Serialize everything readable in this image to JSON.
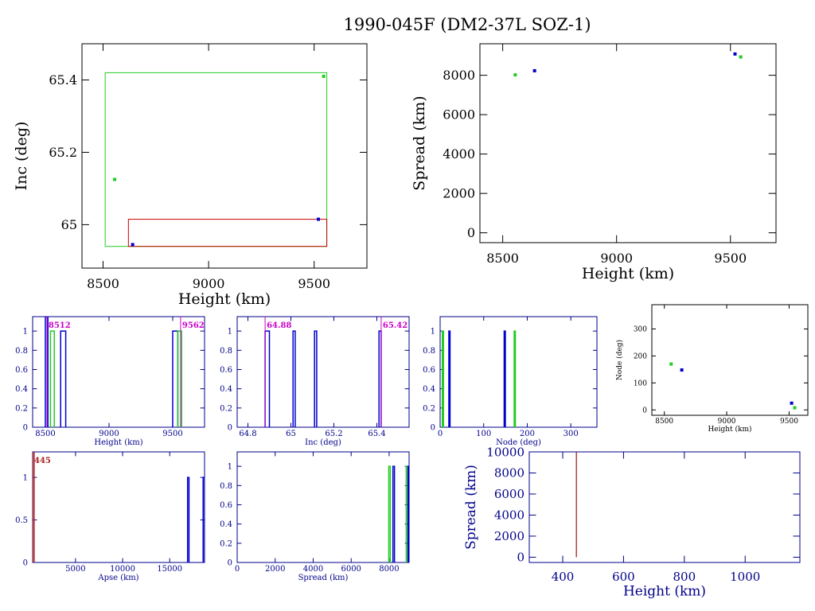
{
  "figure": {
    "title": "1990-045F (DM2-37L SOZ-1)"
  },
  "colors": {
    "axis": "#000000",
    "blue_axis": "#00008b",
    "blue": "#0000cc",
    "green": "#22cc22",
    "red": "#cc0000",
    "darkred": "#aa2222",
    "magenta": "#cc00cc"
  },
  "chart_data": [
    {
      "id": "inc-vs-height",
      "type": "scatter",
      "xlabel": "Height (km)",
      "ylabel": "Inc (deg)",
      "xlim": [
        8400,
        9750
      ],
      "ylim": [
        64.88,
        65.5
      ],
      "xticks": [
        8500,
        9000,
        9500
      ],
      "yticks": [
        65,
        65.2,
        65.4
      ],
      "grid": false,
      "rects": [
        {
          "color": "green",
          "x": [
            8510,
            9560
          ],
          "y": [
            64.94,
            65.42
          ]
        },
        {
          "color": "red",
          "x": [
            8620,
            9560
          ],
          "y": [
            64.94,
            65.015
          ]
        }
      ],
      "points": [
        {
          "color": "green",
          "x": 8555,
          "y": 65.125
        },
        {
          "color": "green",
          "x": 9545,
          "y": 65.41
        },
        {
          "color": "blue",
          "x": 9520,
          "y": 65.015
        },
        {
          "color": "blue",
          "x": 8640,
          "y": 64.945
        }
      ]
    },
    {
      "id": "spread-vs-height",
      "type": "scatter",
      "xlabel": "Height (km)",
      "ylabel": "Spread (km)",
      "xlim": [
        8400,
        9700
      ],
      "ylim": [
        -500,
        9600
      ],
      "xticks": [
        8500,
        9000,
        9500
      ],
      "yticks": [
        0,
        2000,
        4000,
        6000,
        8000
      ],
      "grid": false,
      "points": [
        {
          "color": "green",
          "x": 8555,
          "y": 8020
        },
        {
          "color": "blue",
          "x": 8640,
          "y": 8230
        },
        {
          "color": "blue",
          "x": 9520,
          "y": 9080
        },
        {
          "color": "green",
          "x": 9545,
          "y": 8930
        }
      ]
    },
    {
      "id": "height-histogram",
      "type": "bar",
      "xlabel": "Height (km)",
      "ylabel": "",
      "xlim": [
        8400,
        9750
      ],
      "ylim": [
        0,
        1.15
      ],
      "xticks": [
        8500,
        9000,
        9500
      ],
      "yticks": [
        0,
        0.2,
        0.4,
        0.6,
        0.8,
        1
      ],
      "ytick_labels": [
        "0",
        "0.2",
        "0.4",
        "0.6",
        "0.8",
        "1"
      ],
      "annotations": [
        {
          "text": "8512",
          "x": 8512,
          "color": "magenta"
        },
        {
          "text": "9562",
          "x": 9562,
          "color": "magenta"
        }
      ],
      "bars": [
        {
          "color": "blue",
          "x0": 8500,
          "x1": 8520,
          "y": 1.15
        },
        {
          "color": "green",
          "x0": 8540,
          "x1": 8570,
          "y": 1
        },
        {
          "color": "blue",
          "x0": 8620,
          "x1": 8660,
          "y": 1
        },
        {
          "color": "blue",
          "x0": 9500,
          "x1": 9540,
          "y": 1
        },
        {
          "color": "green",
          "x0": 9540,
          "x1": 9570,
          "y": 1
        }
      ]
    },
    {
      "id": "inc-histogram",
      "type": "bar",
      "xlabel": "Inc (deg)",
      "ylabel": "",
      "xlim": [
        64.75,
        65.55
      ],
      "ylim": [
        0,
        1.15
      ],
      "xticks": [
        64.8,
        65,
        65.2,
        65.4
      ],
      "xtick_labels": [
        "64.8",
        "65",
        "65.2",
        "65.4"
      ],
      "yticks": [
        0,
        0.2,
        0.4,
        0.6,
        0.8,
        1
      ],
      "ytick_labels": [
        "0",
        "0.2",
        "0.4",
        "0.6",
        "0.8",
        "1"
      ],
      "annotations": [
        {
          "text": "64.88",
          "x": 64.88,
          "color": "magenta"
        },
        {
          "text": "65.42",
          "x": 65.42,
          "color": "magenta"
        }
      ],
      "bars": [
        {
          "color": "blue",
          "x0": 64.88,
          "x1": 64.9,
          "y": 1
        },
        {
          "color": "blue",
          "x0": 65.01,
          "x1": 65.02,
          "y": 1
        },
        {
          "color": "blue",
          "x0": 65.11,
          "x1": 65.12,
          "y": 1
        },
        {
          "color": "blue",
          "x0": 65.41,
          "x1": 65.42,
          "y": 1
        }
      ]
    },
    {
      "id": "node-histogram",
      "type": "bar",
      "xlabel": "Node (deg)",
      "ylabel": "",
      "xlim": [
        0,
        360
      ],
      "ylim": [
        0,
        1.15
      ],
      "xticks": [
        0,
        100,
        200,
        300
      ],
      "yticks": [
        0,
        0.2,
        0.4,
        0.6,
        0.8,
        1
      ],
      "ytick_labels": [
        "0",
        "0.2",
        "0.4",
        "0.6",
        "0.8",
        "1"
      ],
      "bars": [
        {
          "color": "green",
          "x0": 5,
          "x1": 7,
          "y": 1
        },
        {
          "color": "blue",
          "x0": 20,
          "x1": 22,
          "y": 1
        },
        {
          "color": "blue",
          "x0": 147,
          "x1": 149,
          "y": 1
        },
        {
          "color": "green",
          "x0": 170,
          "x1": 172,
          "y": 1
        }
      ]
    },
    {
      "id": "node-vs-height",
      "type": "scatter",
      "xlabel": "Height (km)",
      "ylabel": "Node (deg)",
      "xlim": [
        8400,
        9650
      ],
      "ylim": [
        -20,
        390
      ],
      "xticks": [
        8500,
        9000,
        9500
      ],
      "yticks": [
        0,
        100,
        200,
        300
      ],
      "grid": false,
      "points": [
        {
          "color": "green",
          "x": 8555,
          "y": 170
        },
        {
          "color": "blue",
          "x": 8640,
          "y": 148
        },
        {
          "color": "blue",
          "x": 9520,
          "y": 25
        },
        {
          "color": "green",
          "x": 9545,
          "y": 8
        }
      ]
    },
    {
      "id": "apse-histogram",
      "type": "bar",
      "xlabel": "Apse (km)",
      "ylabel": "",
      "xlim": [
        445,
        18700
      ],
      "ylim": [
        0,
        1.3
      ],
      "xticks": [
        5000,
        10000,
        15000
      ],
      "yticks": [
        0,
        0.5,
        1
      ],
      "ytick_labels": [
        "0",
        "0.5",
        "1"
      ],
      "annotations": [
        {
          "text": "445",
          "x": 445,
          "color": "darkred"
        }
      ],
      "bars": [
        {
          "color": "darkred",
          "x0": 445,
          "x1": 600,
          "y": 1.3
        },
        {
          "color": "blue",
          "x0": 16900,
          "x1": 17050,
          "y": 1
        },
        {
          "color": "blue",
          "x0": 18550,
          "x1": 18700,
          "y": 1
        }
      ]
    },
    {
      "id": "spread-histogram",
      "type": "bar",
      "xlabel": "Spread (km)",
      "ylabel": "",
      "xlim": [
        0,
        9050
      ],
      "ylim": [
        0,
        1.15
      ],
      "xticks": [
        0,
        2000,
        4000,
        6000,
        8000
      ],
      "yticks": [
        0,
        0.2,
        0.4,
        0.6,
        0.8,
        1
      ],
      "ytick_labels": [
        "0",
        "0.2",
        "0.4",
        "0.6",
        "0.8",
        "1"
      ],
      "bars": [
        {
          "color": "green",
          "x0": 7980,
          "x1": 8060,
          "y": 1
        },
        {
          "color": "blue",
          "x0": 8200,
          "x1": 8280,
          "y": 1
        },
        {
          "color": "green",
          "x0": 8900,
          "x1": 8980,
          "y": 1
        },
        {
          "color": "blue",
          "x0": 8990,
          "x1": 9050,
          "y": 1
        }
      ]
    },
    {
      "id": "spread-vs-height-low",
      "type": "line",
      "xlabel": "Height (km)",
      "ylabel": "Spread (km)",
      "xlim": [
        290,
        1180
      ],
      "ylim": [
        -500,
        10000
      ],
      "xticks": [
        400,
        600,
        800,
        1000
      ],
      "yticks": [
        0,
        2000,
        4000,
        6000,
        8000,
        10000
      ],
      "grid": false,
      "lines": [
        {
          "color": "darkred",
          "x": [
            445,
            445
          ],
          "y": [
            0,
            10000
          ]
        }
      ]
    }
  ]
}
